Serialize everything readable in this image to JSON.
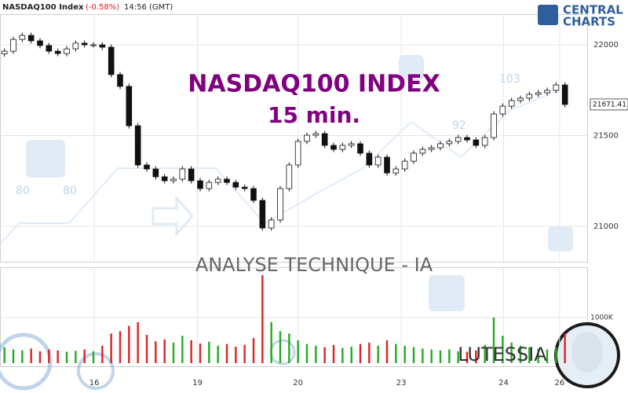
{
  "chart_data": {
    "type": "candlestick",
    "header": {
      "symbol": "NASDAQ100 Index",
      "change": "(-0.58%)",
      "time": "14:56 (GMT)"
    },
    "logo": [
      "CENTRAL",
      "CHARTS"
    ],
    "title": "NASDAQ100 INDEX",
    "subtitle": "15 min.",
    "footer": "ANALYSE TECHNIQUE - IA",
    "brand": "LUTESSIA",
    "watermark_labels": [
      "80",
      "80",
      "92",
      "103"
    ],
    "up_color": "#ffffff",
    "down_color": "#111111",
    "volume_up_color": "#22aa22",
    "volume_down_color": "#dd2222",
    "title_color": "#800080",
    "xlim": [
      -0.5,
      65.5
    ],
    "xticks": [
      {
        "value": 10.1,
        "label": "16"
      },
      {
        "value": 21.7,
        "label": "19"
      },
      {
        "value": 33.0,
        "label": "20"
      },
      {
        "value": 44.6,
        "label": "23"
      },
      {
        "value": 56.1,
        "label": "24"
      },
      {
        "value": 62.4,
        "label": "26"
      }
    ],
    "ylim": [
      20805,
      22169
    ],
    "yticks": [
      21000,
      21500,
      22000
    ],
    "volume_ylim": [
      0,
      2070
    ],
    "volume_yticks": [
      {
        "value": 1000,
        "label": "1000K"
      }
    ],
    "grid": true,
    "open": [
      21950,
      21965,
      22030,
      22052,
      22022,
      21996,
      21965,
      21952,
      21978,
      22009,
      22000,
      22000,
      21987,
      21836,
      21771,
      21554,
      21338,
      21316,
      21273,
      21251,
      21260,
      21316,
      21251,
      21208,
      21242,
      21260,
      21242,
      21216,
      21208,
      21143,
      20991,
      21035,
      21208,
      21338,
      21468,
      21502,
      21511,
      21446,
      21424,
      21446,
      21455,
      21403,
      21338,
      21381,
      21294,
      21316,
      21359,
      21403,
      21424,
      21433,
      21455,
      21468,
      21489,
      21476,
      21446,
      21489,
      21619,
      21662,
      21693,
      21706,
      21727,
      21736,
      21749,
      21779
    ],
    "high": [
      21980,
      22045,
      22067,
      22067,
      22037,
      22011,
      21980,
      21993,
      22024,
      22024,
      22015,
      22015,
      22002,
      21851,
      21786,
      21569,
      21353,
      21331,
      21288,
      21275,
      21331,
      21331,
      21266,
      21257,
      21275,
      21275,
      21257,
      21231,
      21223,
      21158,
      21050,
      21223,
      21353,
      21483,
      21517,
      21526,
      21526,
      21461,
      21461,
      21470,
      21470,
      21418,
      21396,
      21396,
      21331,
      21374,
      21418,
      21439,
      21448,
      21470,
      21483,
      21504,
      21504,
      21491,
      21504,
      21634,
      21677,
      21708,
      21721,
      21742,
      21751,
      21764,
      21794,
      21794
    ],
    "low": [
      21935,
      21950,
      22015,
      22007,
      21981,
      21950,
      21937,
      21937,
      21963,
      21985,
      21985,
      21972,
      21821,
      21756,
      21539,
      21323,
      21301,
      21258,
      21236,
      21236,
      21245,
      21236,
      21193,
      21193,
      21227,
      21227,
      21201,
      21193,
      21128,
      20976,
      20976,
      21020,
      21193,
      21323,
      21453,
      21487,
      21431,
      21409,
      21409,
      21431,
      21388,
      21323,
      21323,
      21279,
      21279,
      21301,
      21344,
      21388,
      21409,
      21418,
      21440,
      21453,
      21461,
      21431,
      21431,
      21474,
      21604,
      21647,
      21678,
      21691,
      21712,
      21721,
      21734,
      21656
    ],
    "close": [
      21965,
      22030,
      22052,
      22022,
      21996,
      21965,
      21952,
      21978,
      22009,
      22000,
      22000,
      21987,
      21836,
      21771,
      21554,
      21338,
      21316,
      21273,
      21251,
      21260,
      21316,
      21251,
      21208,
      21242,
      21260,
      21242,
      21216,
      21208,
      21143,
      20991,
      21035,
      21208,
      21338,
      21468,
      21502,
      21511,
      21446,
      21424,
      21446,
      21455,
      21403,
      21338,
      21381,
      21294,
      21316,
      21359,
      21403,
      21424,
      21433,
      21455,
      21468,
      21489,
      21476,
      21446,
      21489,
      21619,
      21662,
      21693,
      21706,
      21727,
      21736,
      21749,
      21779,
      21671.41
    ],
    "volume": [
      350,
      300,
      280,
      320,
      260,
      300,
      280,
      250,
      270,
      300,
      260,
      380,
      650,
      700,
      820,
      900,
      620,
      480,
      520,
      450,
      600,
      500,
      430,
      470,
      380,
      420,
      360,
      400,
      550,
      1930,
      900,
      700,
      650,
      500,
      420,
      380,
      350,
      400,
      330,
      360,
      420,
      450,
      380,
      500,
      420,
      380,
      350,
      320,
      300,
      280,
      300,
      260,
      250,
      280,
      400,
      1000,
      600,
      450,
      380,
      350,
      320,
      300,
      350,
      650
    ]
  }
}
